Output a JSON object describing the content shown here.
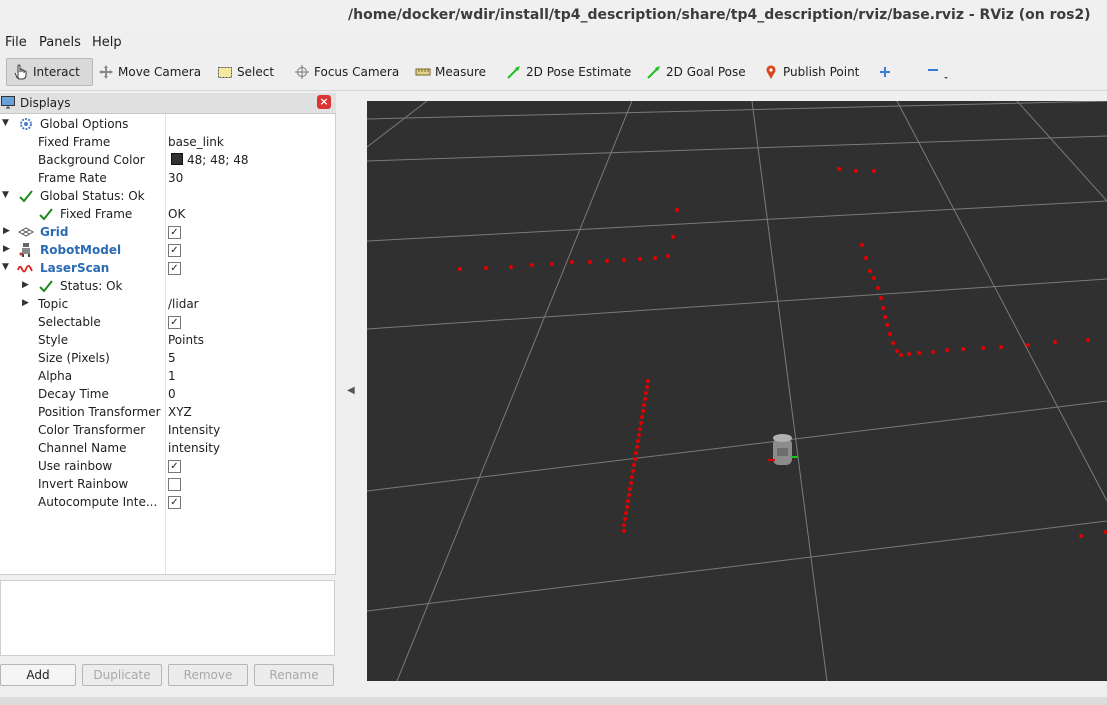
{
  "window": {
    "title": "/home/docker/wdir/install/tp4_description/share/tp4_description/rviz/base.rviz - RViz (on ros2)"
  },
  "menu": {
    "file": "File",
    "panels": "Panels",
    "help": "Help"
  },
  "toolbar": {
    "interact": "Interact",
    "move_camera": "Move Camera",
    "select": "Select",
    "focus_camera": "Focus Camera",
    "measure": "Measure",
    "pose_estimate": "2D Pose Estimate",
    "goal_pose": "2D Goal Pose",
    "publish_point": "Publish Point"
  },
  "displays_panel": {
    "title": "Displays",
    "global_options": "Global Options",
    "fixed_frame_label": "Fixed Frame",
    "fixed_frame_value": "base_link",
    "background_color_label": "Background Color",
    "background_color_value": "48; 48; 48",
    "frame_rate_label": "Frame Rate",
    "frame_rate_value": "30",
    "global_status": "Global Status: Ok",
    "status_fixed_frame_label": "Fixed Frame",
    "status_fixed_frame_value": "OK",
    "grid": "Grid",
    "robot_model": "RobotModel",
    "laser_scan": "LaserScan",
    "ls_status": "Status: Ok",
    "ls_topic_label": "Topic",
    "ls_topic_value": "/lidar",
    "ls_selectable_label": "Selectable",
    "ls_style_label": "Style",
    "ls_style_value": "Points",
    "ls_size_label": "Size (Pixels)",
    "ls_size_value": "5",
    "ls_alpha_label": "Alpha",
    "ls_alpha_value": "1",
    "ls_decay_label": "Decay Time",
    "ls_decay_value": "0",
    "ls_pos_transformer_label": "Position Transformer",
    "ls_pos_transformer_value": "XYZ",
    "ls_color_transformer_label": "Color Transformer",
    "ls_color_transformer_value": "Intensity",
    "ls_channel_label": "Channel Name",
    "ls_channel_value": "intensity",
    "ls_use_rainbow_label": "Use rainbow",
    "ls_invert_rainbow_label": "Invert Rainbow",
    "ls_autocompute_label": "Autocompute Inte..."
  },
  "buttons": {
    "add": "Add",
    "duplicate": "Duplicate",
    "remove": "Remove",
    "rename": "Rename"
  },
  "colors": {
    "viewport_bg": "#303030",
    "laser_points": "#e00000",
    "link_blue": "#2a6bb3"
  }
}
